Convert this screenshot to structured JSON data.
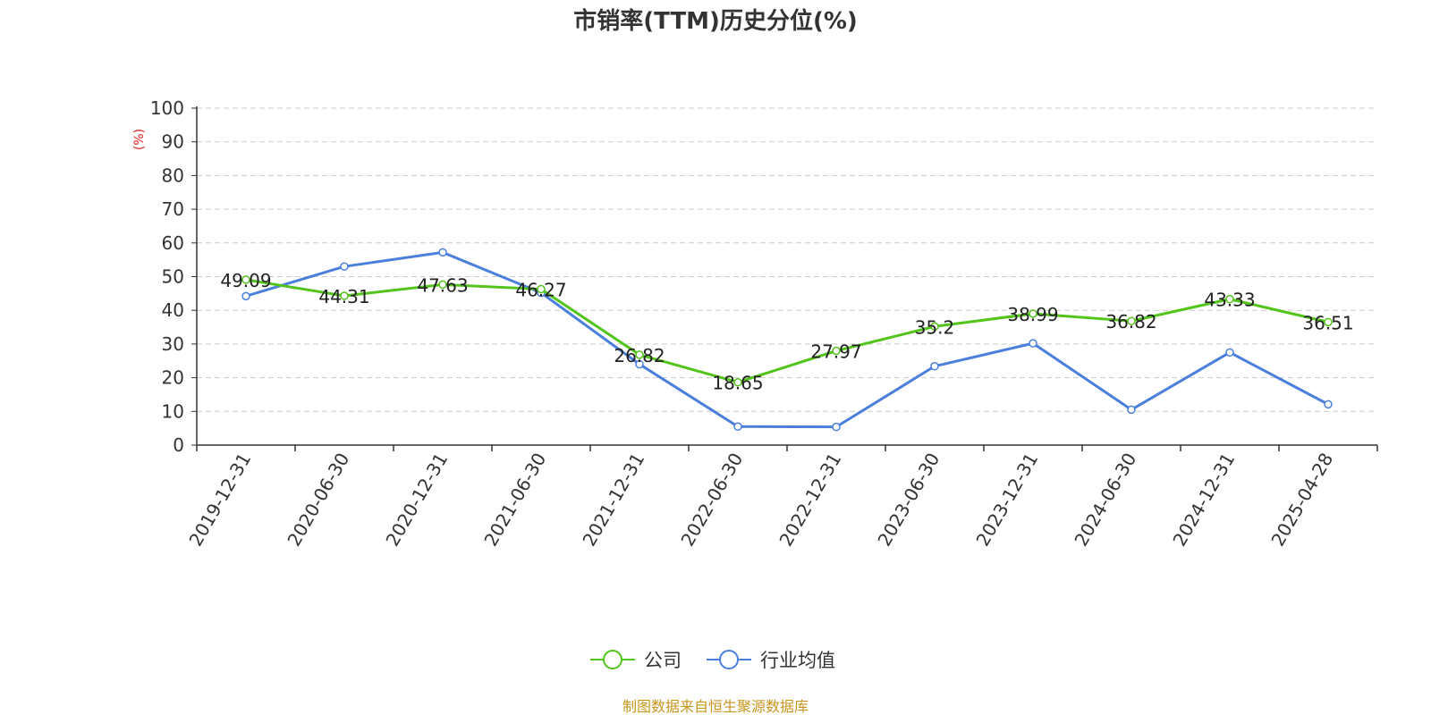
{
  "chart_data": {
    "type": "line",
    "title": "市销率(TTM)历史分位(%)",
    "ylabel": "(%)",
    "ylim": [
      0,
      100
    ],
    "yticks": [
      "0",
      "10",
      "20",
      "30",
      "40",
      "50",
      "60",
      "70",
      "80",
      "90",
      "100"
    ],
    "categories": [
      "2019-12-31",
      "2020-06-30",
      "2020-12-31",
      "2021-06-30",
      "2021-12-31",
      "2022-06-30",
      "2022-12-31",
      "2023-06-30",
      "2023-12-31",
      "2024-06-30",
      "2024-12-31",
      "2025-04-28"
    ],
    "grid": true,
    "legend_position": "bottom",
    "series": [
      {
        "name": "公司",
        "color": "#52c41a",
        "values": [
          49.09,
          44.31,
          47.63,
          46.27,
          26.82,
          18.65,
          27.97,
          35.2,
          38.99,
          36.82,
          43.33,
          36.51
        ],
        "labels": [
          "49.09",
          "44.31",
          "47.63",
          "46.27",
          "26.82",
          "18.65",
          "27.97",
          "35.2",
          "38.99",
          "36.82",
          "43.33",
          "36.51"
        ]
      },
      {
        "name": "行业均值",
        "color": "#4a7fdb",
        "values": [
          44.2,
          53.0,
          57.2,
          45.2,
          24.0,
          5.5,
          5.4,
          23.4,
          30.2,
          10.5,
          27.5,
          12.1
        ]
      }
    ]
  },
  "source_text": "制图数据来自恒生聚源数据库",
  "colors": {
    "ylabel": "#e02020",
    "source": "#c8961e",
    "axis": "#333333",
    "grid": "#cccccc"
  }
}
